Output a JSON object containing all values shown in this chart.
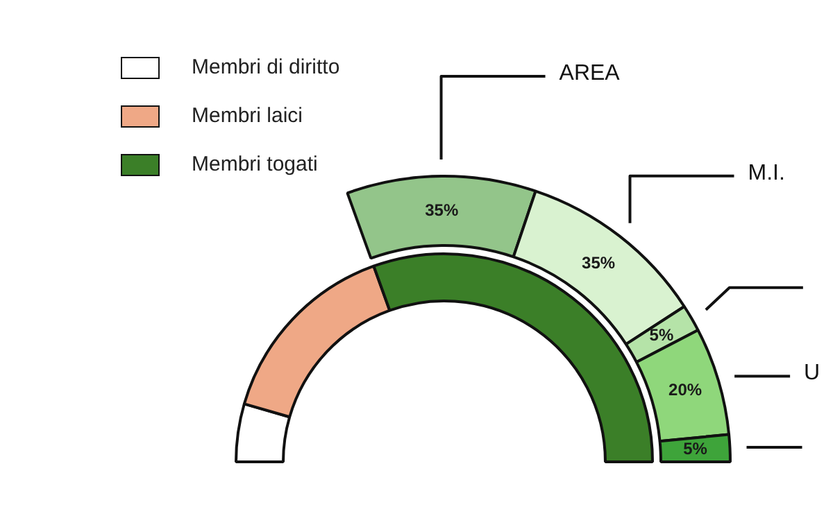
{
  "chart_data": [
    {
      "type": "donut",
      "legend": "top left",
      "categories": [
        "Membri di diritto",
        "Membri laici",
        "Membri togati"
      ],
      "values": [
        9,
        30,
        61
      ],
      "colors": [
        "#ffffff",
        "#efa886",
        "#3b7f28"
      ]
    },
    {
      "type": "donut",
      "categories": [
        "AREA",
        "M.I.",
        null,
        "U",
        null
      ],
      "values": [
        35,
        35,
        5,
        20,
        5
      ],
      "colors": [
        "#93c58a",
        "#d9f2d0",
        "#b5e3a8",
        "#8fd77b",
        "#3ea43a"
      ],
      "value_labels": [
        "35%",
        "35%",
        "5%",
        "20%",
        "5%"
      ]
    }
  ]
}
